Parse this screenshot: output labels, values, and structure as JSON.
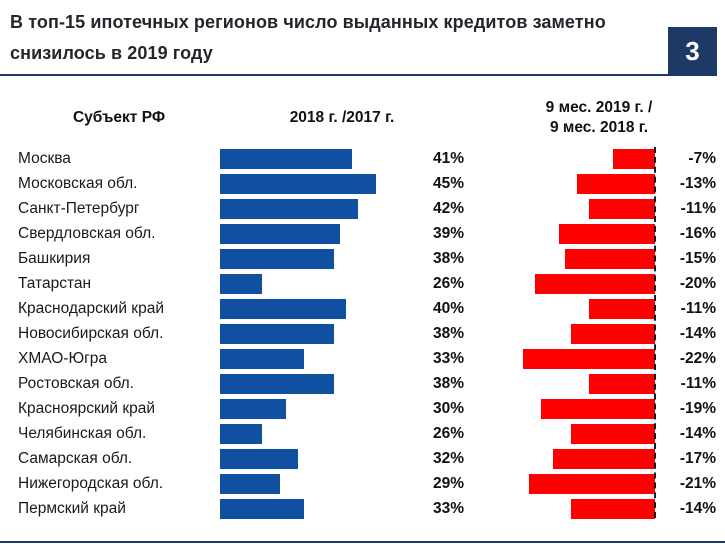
{
  "header": {
    "title_line1": "В топ-15 ипотечных регионов число выданных кредитов заметно",
    "title_line2": "снизилось в 2019 году",
    "page_number": "3"
  },
  "table": {
    "col1_header": "Субъект РФ",
    "col2_header": "2018 г. /2017 г.",
    "col3_header_line1": "9 мес. 2019 г. /",
    "col3_header_line2": "9 мес. 2018 г."
  },
  "colors": {
    "navy": "#1d3a66",
    "blue_bar": "#1050a0",
    "red_bar": "#ff0000",
    "title_text": "#25252d"
  },
  "chart_data": {
    "type": "bar",
    "orientation": "horizontal",
    "title": "В топ-15 ипотечных регионов число выданных кредитов заметно снизилось в 2019 году",
    "categories": [
      "Москва",
      "Московская обл.",
      "Санкт-Петербург",
      "Свердловская обл.",
      "Башкирия",
      "Татарстан",
      "Краснодарский край",
      "Новосибирская обл.",
      "ХМАО-Югра",
      "Ростовская обл.",
      "Красноярский край",
      "Челябинская обл.",
      "Самарская обл.",
      "Нижегородская обл.",
      "Пермский край"
    ],
    "series": [
      {
        "name": "2018 г. /2017 г.",
        "unit": "%",
        "color": "#1050a0",
        "values": [
          41,
          45,
          42,
          39,
          38,
          26,
          40,
          38,
          33,
          38,
          30,
          26,
          32,
          29,
          33
        ],
        "labels": [
          "41%",
          "45%",
          "42%",
          "39%",
          "38%",
          "26%",
          "40%",
          "38%",
          "33%",
          "38%",
          "30%",
          "26%",
          "32%",
          "29%",
          "33%"
        ]
      },
      {
        "name": "9 мес. 2019 г. / 9 мес. 2018 г.",
        "unit": "%",
        "color": "#ff0000",
        "values": [
          -7,
          -13,
          -11,
          -16,
          -15,
          -20,
          -11,
          -14,
          -22,
          -11,
          -19,
          -14,
          -17,
          -21,
          -14
        ],
        "labels": [
          "-7%",
          "-13%",
          "-11%",
          "-16%",
          "-15%",
          "-20%",
          "-11%",
          "-14%",
          "-22%",
          "-11%",
          "-19%",
          "-14%",
          "-17%",
          "-21%",
          "-14%"
        ]
      }
    ],
    "axis_hints": {
      "blue_axis_min": 19,
      "red_axis_baseline": 0,
      "grid": false,
      "legend": "column-headers"
    }
  }
}
